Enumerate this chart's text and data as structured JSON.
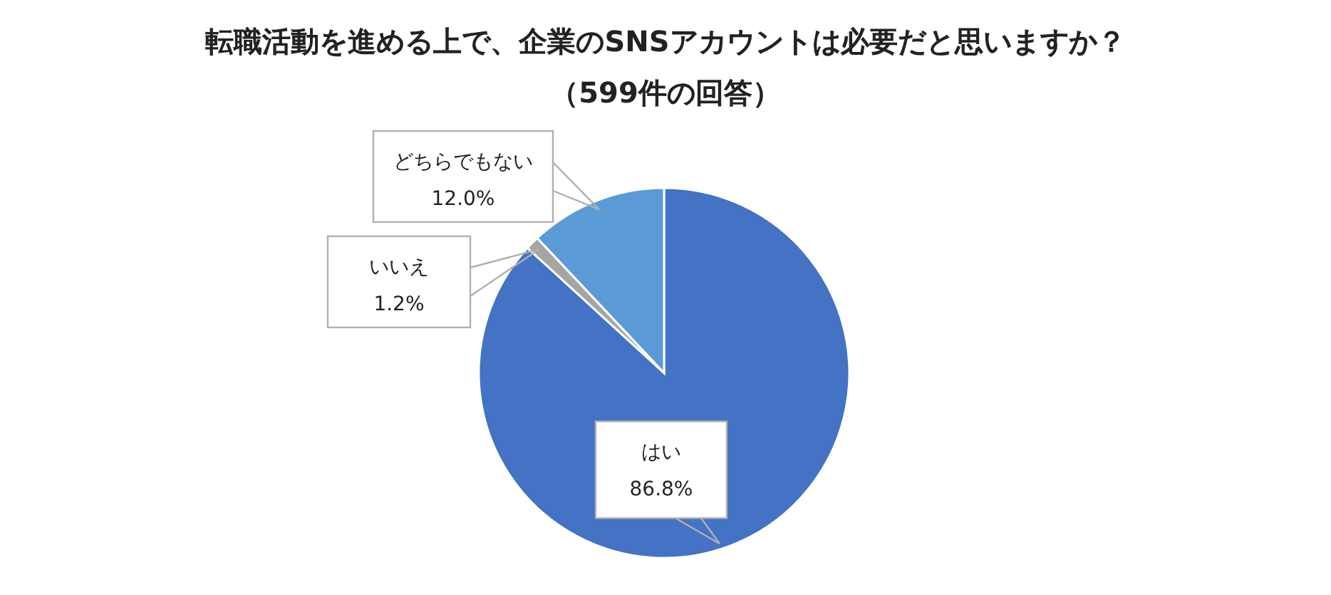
{
  "chart_data": {
    "type": "pie",
    "title": "転職活動を進める上で、企業のSNSアカウントは必要だと思いますか？",
    "subtitle": "（599件の回答）",
    "categories": [
      "はい",
      "いいえ",
      "どちらでもない"
    ],
    "values": [
      86.8,
      1.2,
      12.0
    ],
    "colors": [
      "#4472c4",
      "#a5a5a5",
      "#5b9bd5"
    ],
    "data_labels": true,
    "value_labels": [
      "86.8%",
      "1.2%",
      "12.0%"
    ]
  }
}
